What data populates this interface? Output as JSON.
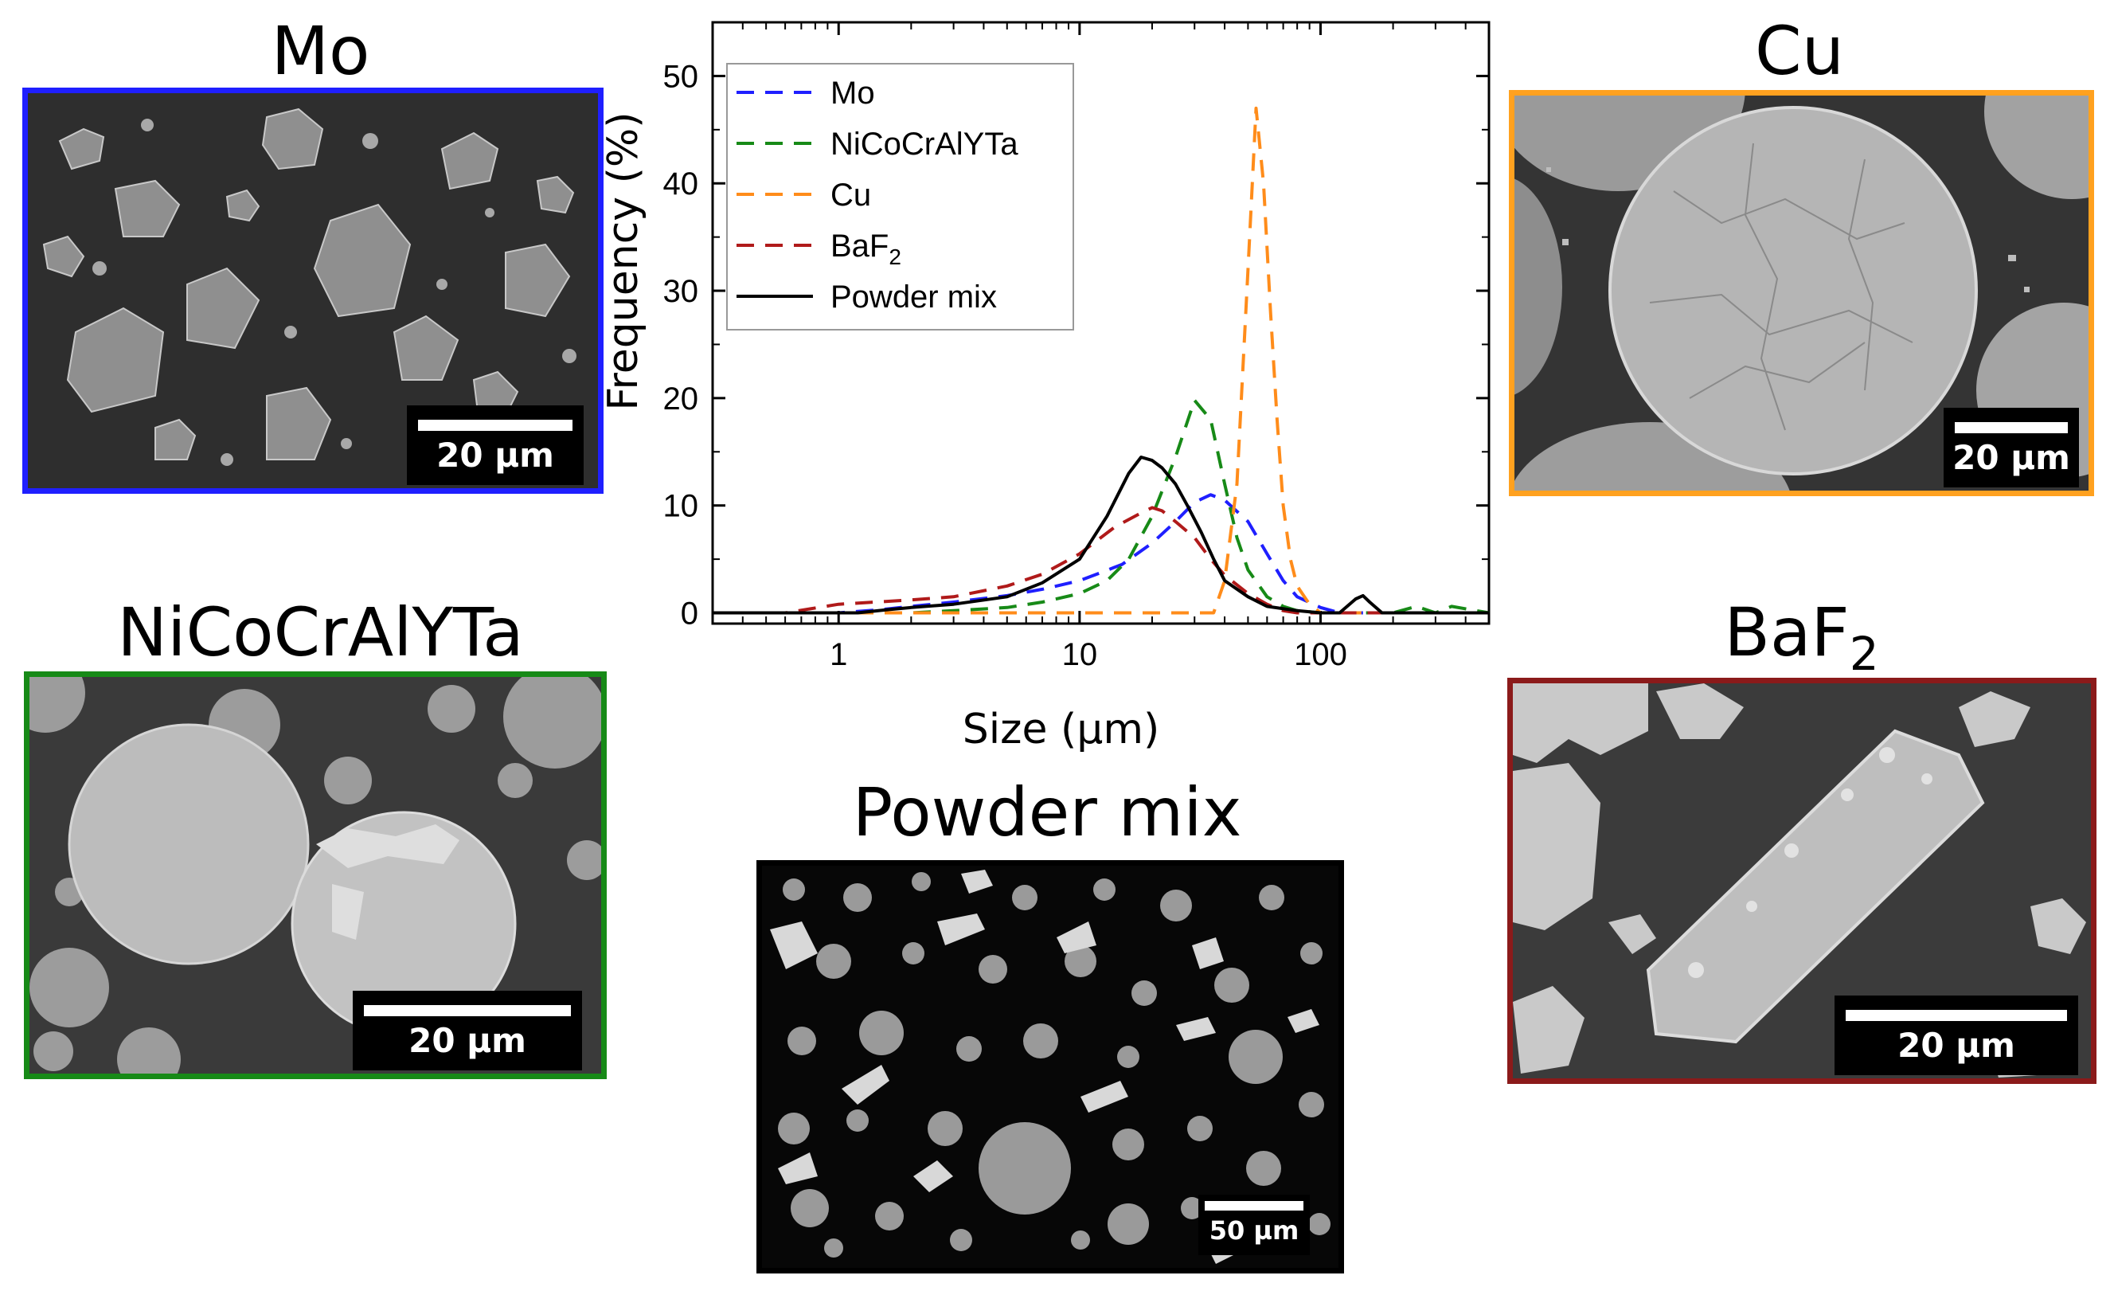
{
  "panels": {
    "mo": {
      "title": "Mo",
      "scale_label": "20 µm",
      "border_color": "#1f1fff"
    },
    "cu": {
      "title": "Cu",
      "scale_label": "20 µm",
      "border_color": "#ffa11f"
    },
    "nicocralyta": {
      "title": "NiCoCrAlYTa",
      "scale_label": "20 µm",
      "border_color": "#178a17"
    },
    "baf2": {
      "title_base": "BaF",
      "title_sub": "2",
      "scale_label": "20 µm",
      "border_color": "#8b1a1a"
    },
    "powder_mix": {
      "title": "Powder mix",
      "scale_label": "50 µm",
      "border_color": "#000000"
    }
  },
  "chart_data": {
    "type": "line",
    "xlabel": "Size (µm)",
    "ylabel": "Frequency (%)",
    "xscale": "log",
    "xlim": [
      0.3,
      500
    ],
    "ylim": [
      -1,
      55
    ],
    "xticks": [
      {
        "value": 1,
        "label": "1"
      },
      {
        "value": 10,
        "label": "10"
      },
      {
        "value": 100,
        "label": "100"
      }
    ],
    "yticks": [
      {
        "value": 0,
        "label": "0"
      },
      {
        "value": 10,
        "label": "10"
      },
      {
        "value": 20,
        "label": "20"
      },
      {
        "value": 30,
        "label": "30"
      },
      {
        "value": 40,
        "label": "40"
      },
      {
        "value": 50,
        "label": "50"
      }
    ],
    "legend_position": "top-left",
    "series": [
      {
        "name": "Mo",
        "color": "#1f1fff",
        "style": "dashed",
        "x": [
          0.3,
          1,
          1.5,
          2,
          3,
          5,
          7,
          10,
          15,
          20,
          25,
          30,
          35,
          40,
          50,
          60,
          70,
          80,
          100,
          120,
          500
        ],
        "y": [
          0,
          0,
          0.3,
          0.6,
          1.0,
          1.6,
          2.2,
          3.0,
          4.5,
          6.5,
          8.5,
          10.3,
          11.0,
          10.5,
          8.5,
          5.5,
          3.0,
          1.5,
          0.5,
          0,
          0
        ]
      },
      {
        "name": "NiCoCrAlYTa",
        "color": "#178a17",
        "style": "dashed",
        "x": [
          0.3,
          2,
          3,
          5,
          7,
          10,
          13,
          16,
          20,
          25,
          30,
          35,
          40,
          45,
          50,
          60,
          70,
          80,
          100,
          200,
          250,
          300,
          350,
          500
        ],
        "y": [
          0,
          0,
          0.2,
          0.5,
          1.0,
          1.8,
          3.0,
          5.0,
          9.0,
          14.5,
          19.8,
          18.0,
          12.0,
          7.0,
          4.0,
          1.5,
          0.6,
          0.2,
          0,
          0,
          0.6,
          0,
          0.6,
          0
        ]
      },
      {
        "name": "Cu",
        "color": "#ff8c1a",
        "style": "dashed",
        "x": [
          0.3,
          30,
          36,
          40,
          45,
          50,
          54,
          58,
          62,
          66,
          70,
          75,
          80,
          90,
          100,
          500
        ],
        "y": [
          0,
          0,
          0,
          3,
          12,
          32,
          47,
          40,
          28,
          18,
          10,
          5,
          2.5,
          0.8,
          0,
          0
        ]
      },
      {
        "name": "BaF2",
        "name_base": "BaF",
        "name_sub": "2",
        "color": "#b01a1a",
        "style": "dashed",
        "x": [
          0.3,
          0.6,
          1,
          2,
          3,
          5,
          7,
          10,
          14,
          18,
          20,
          22,
          25,
          30,
          35,
          40,
          50,
          60,
          70,
          80,
          100,
          500
        ],
        "y": [
          0,
          0,
          0.8,
          1.2,
          1.5,
          2.5,
          3.6,
          5.5,
          8.0,
          9.3,
          9.8,
          9.5,
          8.5,
          7.0,
          5.0,
          3.5,
          1.8,
          0.8,
          0.2,
          0,
          0,
          0
        ]
      },
      {
        "name": "Powder mix",
        "color": "#000000",
        "style": "solid",
        "x": [
          0.3,
          1.2,
          1.6,
          2,
          3,
          5,
          7,
          10,
          13,
          16,
          18,
          20,
          22,
          25,
          28,
          32,
          36,
          40,
          50,
          60,
          80,
          100,
          120,
          140,
          150,
          160,
          180,
          500
        ],
        "y": [
          0,
          0,
          0.3,
          0.5,
          0.8,
          1.5,
          2.8,
          5.0,
          9.0,
          13.0,
          14.5,
          14.2,
          13.5,
          12.0,
          10.0,
          7.5,
          5.0,
          3.0,
          1.5,
          0.6,
          0.2,
          0,
          0,
          1.3,
          1.6,
          1.0,
          0,
          0
        ]
      }
    ]
  }
}
